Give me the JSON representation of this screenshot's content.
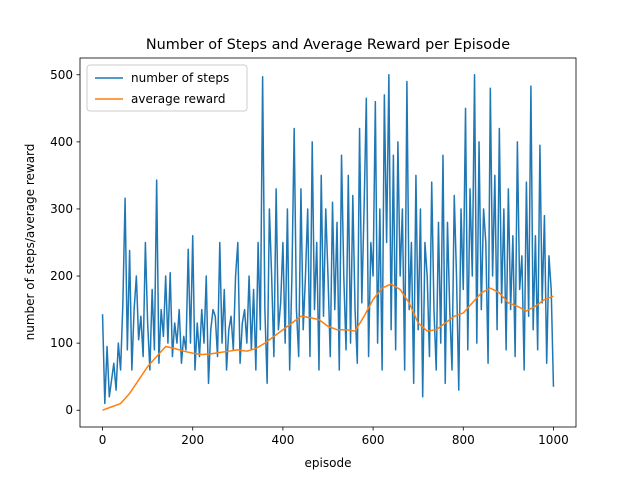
{
  "chart_data": {
    "type": "line",
    "title": "Number of Steps and Average Reward per Episode",
    "x_label": "episode",
    "y_label": "number of steps/average reward",
    "xlim": [
      -50,
      1050
    ],
    "ylim": [
      -25,
      525
    ],
    "xticks": [
      0,
      200,
      400,
      600,
      800,
      1000
    ],
    "yticks": [
      0,
      100,
      200,
      300,
      400,
      500
    ],
    "legend": "upper left",
    "series": [
      {
        "name": "number of steps",
        "color": "#1f77b4",
        "x": [
          0,
          5,
          10,
          15,
          20,
          25,
          30,
          35,
          40,
          45,
          50,
          55,
          60,
          65,
          70,
          75,
          80,
          85,
          90,
          95,
          100,
          105,
          110,
          115,
          120,
          125,
          130,
          135,
          140,
          145,
          150,
          155,
          160,
          165,
          170,
          175,
          180,
          185,
          190,
          195,
          200,
          205,
          210,
          215,
          220,
          225,
          230,
          235,
          240,
          245,
          250,
          255,
          260,
          265,
          270,
          275,
          280,
          285,
          290,
          295,
          300,
          305,
          310,
          315,
          320,
          325,
          330,
          335,
          340,
          345,
          350,
          355,
          360,
          365,
          370,
          375,
          380,
          385,
          390,
          395,
          400,
          405,
          410,
          415,
          420,
          425,
          430,
          435,
          440,
          445,
          450,
          455,
          460,
          465,
          470,
          475,
          480,
          485,
          490,
          495,
          500,
          505,
          510,
          515,
          520,
          525,
          530,
          535,
          540,
          545,
          550,
          555,
          560,
          565,
          570,
          575,
          580,
          585,
          590,
          595,
          600,
          605,
          610,
          615,
          620,
          625,
          630,
          635,
          640,
          645,
          650,
          655,
          660,
          665,
          670,
          675,
          680,
          685,
          690,
          695,
          700,
          705,
          710,
          715,
          720,
          725,
          730,
          735,
          740,
          745,
          750,
          755,
          760,
          765,
          770,
          775,
          780,
          785,
          790,
          795,
          800,
          805,
          810,
          815,
          820,
          825,
          830,
          835,
          840,
          845,
          850,
          855,
          860,
          865,
          870,
          875,
          880,
          885,
          890,
          895,
          900,
          905,
          910,
          915,
          920,
          925,
          930,
          935,
          940,
          945,
          950,
          955,
          960,
          965,
          970,
          975,
          980,
          985,
          990,
          995,
          1000
        ],
        "values": [
          143,
          10,
          95,
          20,
          45,
          70,
          30,
          100,
          60,
          158,
          316,
          90,
          238,
          60,
          150,
          200,
          105,
          140,
          80,
          250,
          130,
          60,
          180,
          90,
          343,
          70,
          150,
          110,
          200,
          100,
          205,
          80,
          130,
          100,
          150,
          70,
          110,
          90,
          240,
          100,
          260,
          60,
          130,
          80,
          150,
          100,
          200,
          40,
          120,
          150,
          140,
          80,
          250,
          100,
          180,
          60,
          120,
          140,
          90,
          200,
          250,
          70,
          130,
          150,
          100,
          200,
          90,
          180,
          60,
          250,
          120,
          497,
          150,
          40,
          300,
          200,
          80,
          330,
          120,
          160,
          250,
          100,
          300,
          60,
          200,
          420,
          150,
          80,
          330,
          120,
          200,
          300,
          80,
          400,
          150,
          250,
          60,
          350,
          140,
          300,
          200,
          80,
          310,
          150,
          280,
          60,
          380,
          200,
          90,
          350,
          100,
          320,
          150,
          70,
          420,
          160,
          300,
          465,
          80,
          250,
          200,
          460,
          100,
          300,
          60,
          470,
          250,
          500,
          120,
          380,
          90,
          400,
          200,
          300,
          60,
          490,
          150,
          250,
          40,
          350,
          120,
          300,
          20,
          250,
          200,
          80,
          340,
          150,
          60,
          280,
          100,
          380,
          40,
          280,
          150,
          60,
          320,
          200,
          30,
          300,
          180,
          450,
          90,
          330,
          200,
          500,
          100,
          400,
          150,
          300,
          250,
          70,
          480,
          200,
          350,
          120,
          420,
          160,
          300,
          90,
          330,
          150,
          260,
          80,
          400,
          180,
          230,
          60,
          340,
          140,
          483,
          120,
          260,
          90,
          395,
          160,
          290,
          70,
          230,
          180,
          35
        ]
      },
      {
        "name": "average reward",
        "color": "#ff7f0e",
        "x": [
          0,
          20,
          40,
          60,
          80,
          100,
          120,
          140,
          160,
          180,
          200,
          220,
          240,
          260,
          280,
          300,
          320,
          340,
          360,
          380,
          400,
          420,
          440,
          460,
          480,
          500,
          520,
          540,
          560,
          580,
          600,
          620,
          640,
          660,
          680,
          700,
          720,
          740,
          760,
          780,
          800,
          820,
          840,
          860,
          880,
          900,
          920,
          940,
          960,
          980,
          1000
        ],
        "values": [
          0,
          5,
          10,
          25,
          45,
          65,
          80,
          95,
          92,
          88,
          85,
          83,
          84,
          86,
          88,
          90,
          88,
          92,
          100,
          110,
          120,
          130,
          140,
          138,
          135,
          125,
          120,
          120,
          118,
          140,
          165,
          182,
          188,
          180,
          160,
          130,
          118,
          120,
          130,
          140,
          145,
          160,
          175,
          182,
          175,
          160,
          155,
          148,
          155,
          165,
          170
        ]
      }
    ]
  }
}
